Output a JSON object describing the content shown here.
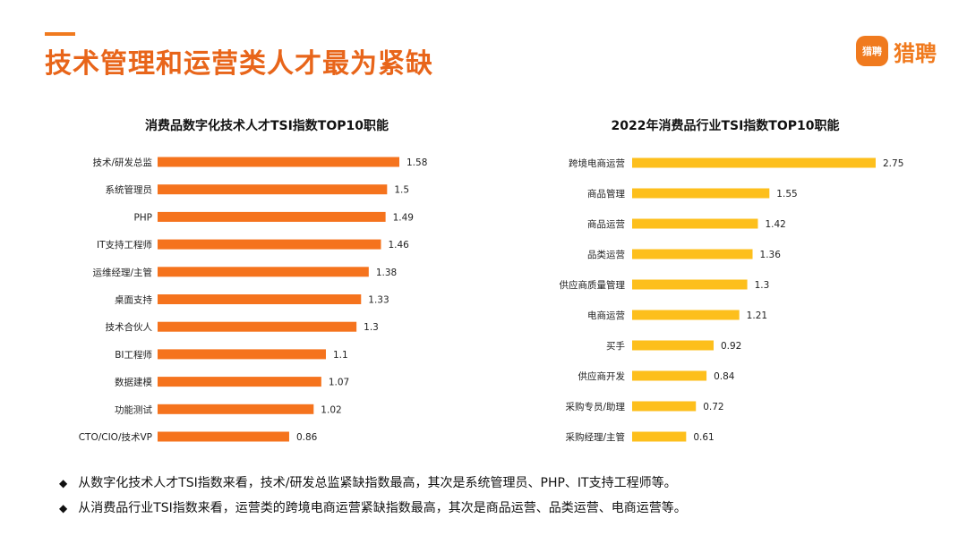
{
  "header": {
    "title": "技术管理和运营类人才最为紧缺",
    "logo_text": "猎聘",
    "logo_badge_text": "猎聘"
  },
  "colors": {
    "accent": "#f07a1e",
    "title": "#e8651a",
    "bar_left": "#f5731d",
    "bar_right": "#fdbf1c"
  },
  "chart_data": [
    {
      "type": "bar",
      "orientation": "horizontal",
      "title": "消费品数字化技术人才TSI指数TOP10职能",
      "categories": [
        "技术/研发总监",
        "系统管理员",
        "PHP",
        "IT支持工程师",
        "运维经理/主管",
        "桌面支持",
        "技术合伙人",
        "BI工程师",
        "数据建模",
        "功能测试",
        "CTO/CIO/技术VP"
      ],
      "values": [
        1.58,
        1.5,
        1.49,
        1.46,
        1.38,
        1.33,
        1.3,
        1.1,
        1.07,
        1.02,
        0.86
      ],
      "value_labels": [
        "1.58",
        "1.5",
        "1.49",
        "1.46",
        "1.38",
        "1.33",
        "1.3",
        "1.1",
        "1.07",
        "1.02",
        "0.86"
      ],
      "xlim": [
        0,
        1.58
      ],
      "grid": false,
      "legend": "none",
      "color": "#f5731d"
    },
    {
      "type": "bar",
      "orientation": "horizontal",
      "title": "2022年消费品行业TSI指数TOP10职能",
      "categories": [
        "跨境电商运营",
        "商品管理",
        "商品运营",
        "品类运营",
        "供应商质量管理",
        "电商运营",
        "买手",
        "供应商开发",
        "采购专员/助理",
        "采购经理/主管"
      ],
      "values": [
        2.75,
        1.55,
        1.42,
        1.36,
        1.3,
        1.21,
        0.92,
        0.84,
        0.72,
        0.61
      ],
      "value_labels": [
        "2.75",
        "1.55",
        "1.42",
        "1.36",
        "1.3",
        "1.21",
        "0.92",
        "0.84",
        "0.72",
        "0.61"
      ],
      "xlim": [
        0,
        2.75
      ],
      "grid": false,
      "legend": "none",
      "color": "#fdbf1c"
    }
  ],
  "notes": [
    "从数字化技术人才TSI指数来看，技术/研发总监紧缺指数最高，其次是系统管理员、PHP、IT支持工程师等。",
    "从消费品行业TSI指数来看，运营类的跨境电商运营紧缺指数最高，其次是商品运营、品类运营、电商运营等。"
  ],
  "bullet_glyph": "◆"
}
